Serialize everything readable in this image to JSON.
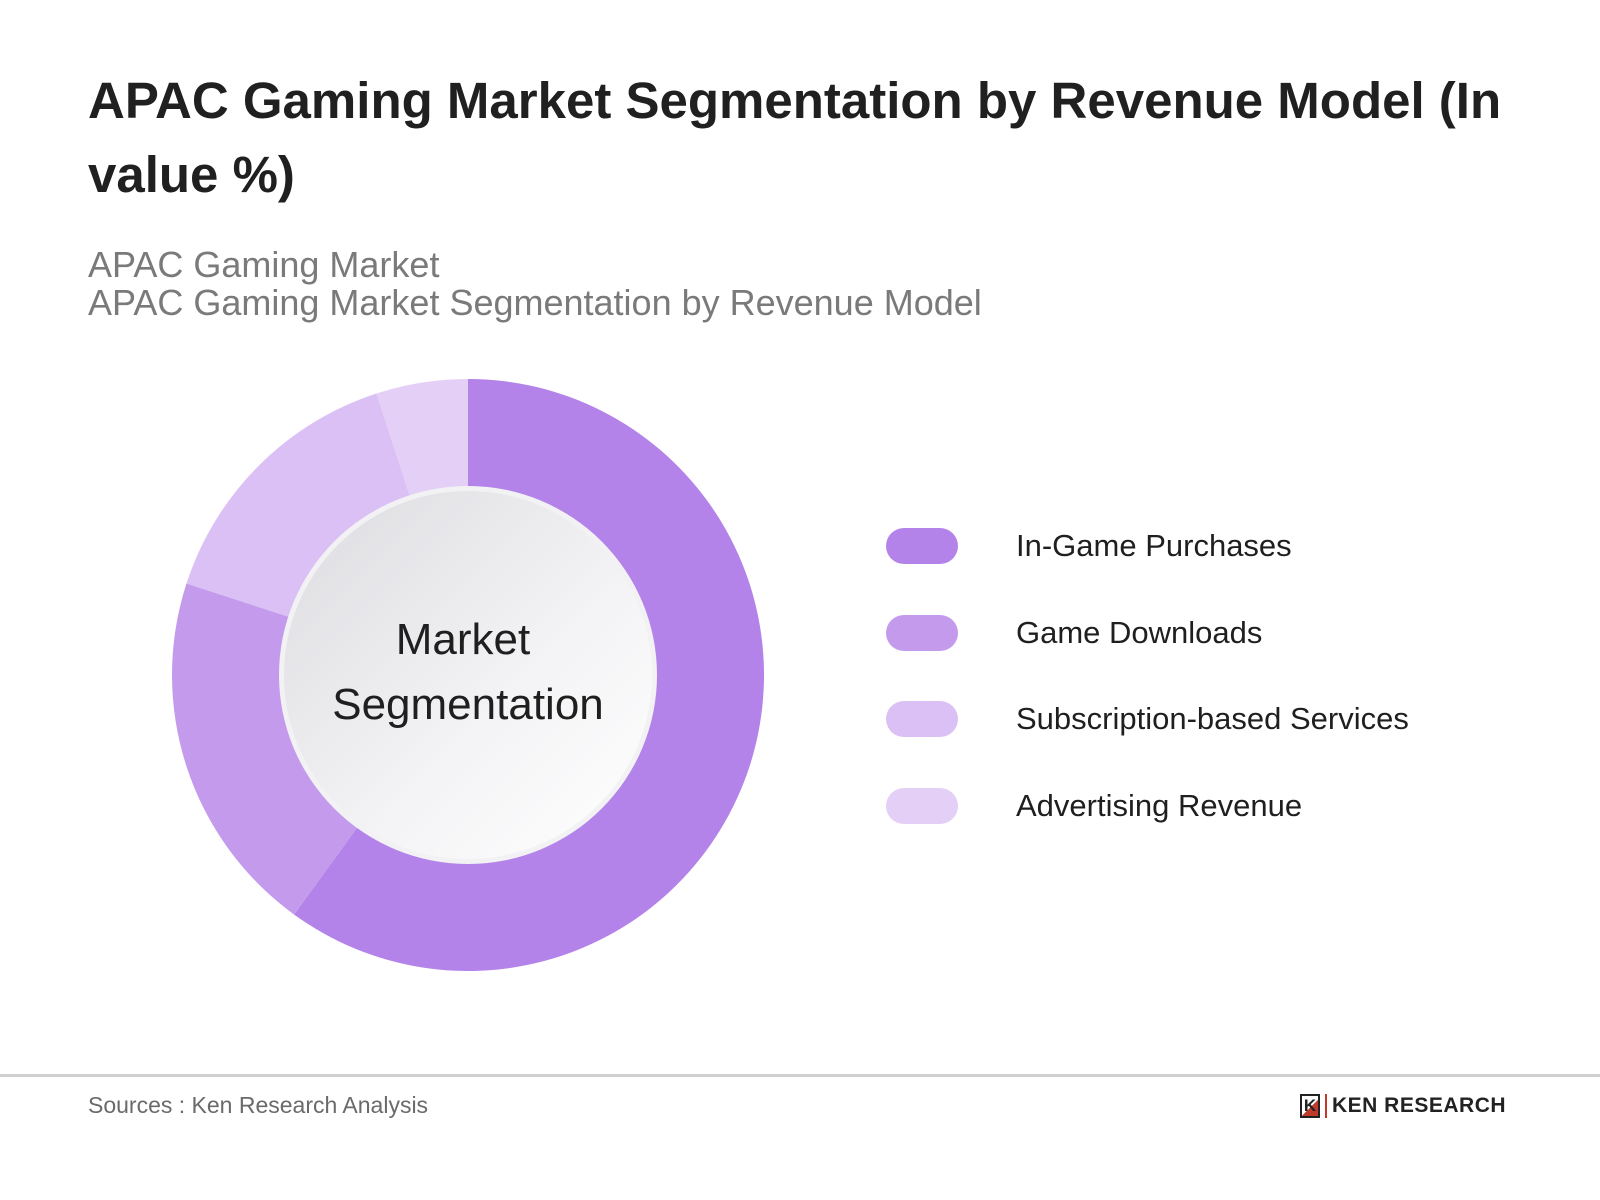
{
  "header": {
    "title": "APAC Gaming Market Segmentation by Revenue Model (In value %)",
    "subtitle_1": "APAC Gaming Market",
    "subtitle_2": "APAC Gaming Market Segmentation by Revenue Model"
  },
  "chart_data": {
    "type": "pie",
    "variant": "donut",
    "title": "APAC Gaming Market Segmentation by Revenue Model (In value %)",
    "center_label": [
      "Market",
      "Segmentation"
    ],
    "categories": [
      "In-Game Purchases",
      "Game Downloads",
      "Subscription-based Services",
      "Advertising Revenue"
    ],
    "values": [
      60,
      20,
      15,
      5
    ],
    "colors": [
      "#b383e9",
      "#c49bec",
      "#dbc0f5",
      "#e4cff7"
    ],
    "legend_position": "right"
  },
  "footer": {
    "source": "Sources : Ken Research Analysis",
    "logo_text": "KEN RESEARCH",
    "logo_mark": "K"
  }
}
